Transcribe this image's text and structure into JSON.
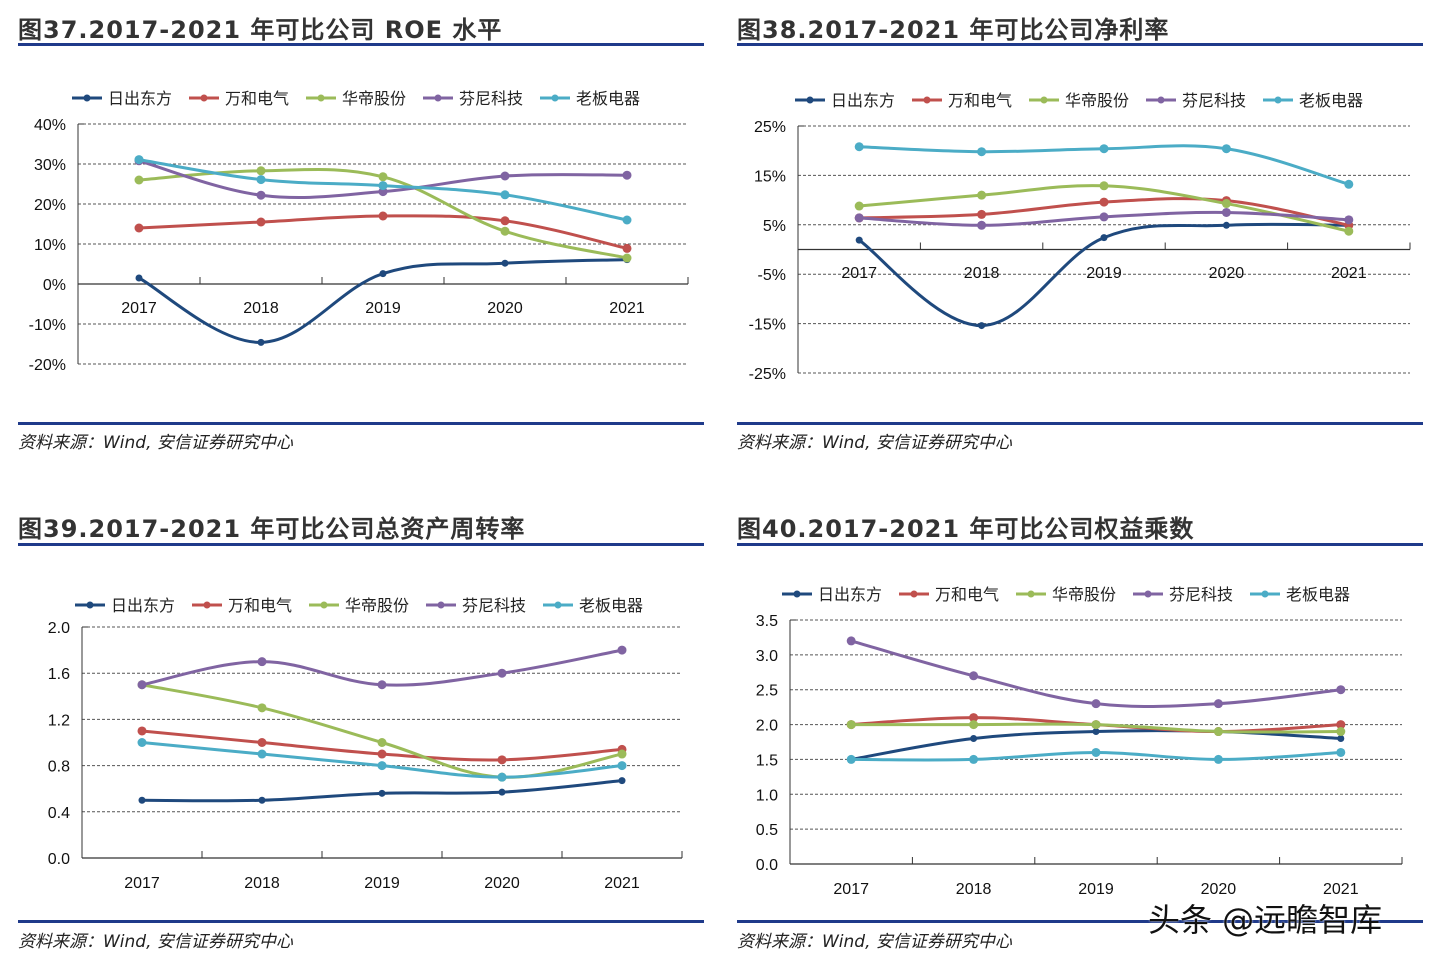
{
  "series_meta": [
    {
      "name": "日出东方",
      "color": "#1f497d"
    },
    {
      "name": "万和电气",
      "color": "#c0504d"
    },
    {
      "name": "华帝股份",
      "color": "#9bbb59"
    },
    {
      "name": "芬尼科技",
      "color": "#8064a2"
    },
    {
      "name": "老板电器",
      "color": "#4bacc6"
    }
  ],
  "watermark": "头条 @远瞻智库",
  "chart_data": [
    {
      "type": "line",
      "title": "图37.2017-2021 年可比公司 ROE 水平",
      "source": "资料来源：Wind, 安信证券研究中心",
      "xlabel": "",
      "ylabel": "",
      "categories": [
        "2017",
        "2018",
        "2019",
        "2020",
        "2021"
      ],
      "yticks": [
        "40%",
        "30%",
        "20%",
        "10%",
        "0%",
        "-10%",
        "-20%"
      ],
      "ylim": [
        -20,
        40
      ],
      "ystep": 10,
      "unit": "%",
      "grid": true,
      "legend": "top",
      "series": [
        {
          "name": "日出东方",
          "values": [
            1.5,
            -14.6,
            2.6,
            5.2,
            6.1
          ]
        },
        {
          "name": "万和电气",
          "values": [
            14.0,
            15.5,
            17.0,
            15.8,
            8.9
          ]
        },
        {
          "name": "华帝股份",
          "values": [
            26.0,
            28.3,
            26.8,
            13.2,
            6.5
          ]
        },
        {
          "name": "芬尼科技",
          "values": [
            30.8,
            22.2,
            23.1,
            27.0,
            27.2
          ]
        },
        {
          "name": "老板电器",
          "values": [
            31.1,
            26.1,
            24.6,
            22.3,
            16.0
          ]
        }
      ]
    },
    {
      "type": "line",
      "title": "图38.2017-2021 年可比公司净利率",
      "source": "资料来源：Wind, 安信证券研究中心",
      "xlabel": "",
      "ylabel": "",
      "categories": [
        "2017",
        "2018",
        "2019",
        "2020",
        "2021"
      ],
      "yticks": [
        "25%",
        "15%",
        "5%",
        "-5%",
        "-15%",
        "-25%"
      ],
      "ylim": [
        -25,
        25
      ],
      "ystep": 10,
      "unit": "%",
      "grid": true,
      "legend": "top",
      "series": [
        {
          "name": "日出东方",
          "values": [
            1.9,
            -15.4,
            2.4,
            4.9,
            4.9
          ]
        },
        {
          "name": "万和电气",
          "values": [
            6.4,
            7.1,
            9.6,
            9.9,
            4.9
          ]
        },
        {
          "name": "华帝股份",
          "values": [
            8.8,
            11.0,
            12.9,
            9.3,
            3.7
          ]
        },
        {
          "name": "芬尼科技",
          "values": [
            6.4,
            4.9,
            6.6,
            7.5,
            6.0
          ]
        },
        {
          "name": "老板电器",
          "values": [
            20.8,
            19.8,
            20.4,
            20.4,
            13.2
          ]
        }
      ]
    },
    {
      "type": "line",
      "title": "图39.2017-2021 年可比公司总资产周转率",
      "source": "资料来源：Wind, 安信证券研究中心",
      "xlabel": "",
      "ylabel": "",
      "categories": [
        "2017",
        "2018",
        "2019",
        "2020",
        "2021"
      ],
      "yticks": [
        "2.0",
        "1.6",
        "1.2",
        "0.8",
        "0.4",
        "0.0"
      ],
      "ylim": [
        0,
        2.0
      ],
      "ystep": 0.4,
      "unit": "",
      "grid": true,
      "legend": "top",
      "series": [
        {
          "name": "日出东方",
          "values": [
            0.5,
            0.5,
            0.56,
            0.57,
            0.67
          ]
        },
        {
          "name": "万和电气",
          "values": [
            1.1,
            1.0,
            0.9,
            0.85,
            0.94
          ]
        },
        {
          "name": "华帝股份",
          "values": [
            1.5,
            1.3,
            1.0,
            0.7,
            0.9
          ]
        },
        {
          "name": "芬尼科技",
          "values": [
            1.5,
            1.7,
            1.5,
            1.6,
            1.8
          ]
        },
        {
          "name": "老板电器",
          "values": [
            1.0,
            0.9,
            0.8,
            0.7,
            0.8
          ]
        }
      ]
    },
    {
      "type": "line",
      "title": "图40.2017-2021 年可比公司权益乘数",
      "source": "资料来源：Wind, 安信证券研究中心",
      "xlabel": "",
      "ylabel": "",
      "categories": [
        "2017",
        "2018",
        "2019",
        "2020",
        "2021"
      ],
      "yticks": [
        "3.5",
        "3.0",
        "2.5",
        "2.0",
        "1.5",
        "1.0",
        "0.5",
        "0.0"
      ],
      "ylim": [
        0,
        3.5
      ],
      "ystep": 0.5,
      "unit": "",
      "grid": true,
      "legend": "top",
      "series": [
        {
          "name": "日出东方",
          "values": [
            1.5,
            1.8,
            1.9,
            1.9,
            1.8
          ]
        },
        {
          "name": "万和电气",
          "values": [
            2.0,
            2.1,
            2.0,
            1.9,
            2.0
          ]
        },
        {
          "name": "华帝股份",
          "values": [
            2.0,
            2.0,
            2.0,
            1.9,
            1.9
          ]
        },
        {
          "name": "芬尼科技",
          "values": [
            3.2,
            2.7,
            2.3,
            2.3,
            2.5
          ]
        },
        {
          "name": "老板电器",
          "values": [
            1.5,
            1.5,
            1.6,
            1.5,
            1.6
          ]
        }
      ]
    }
  ]
}
